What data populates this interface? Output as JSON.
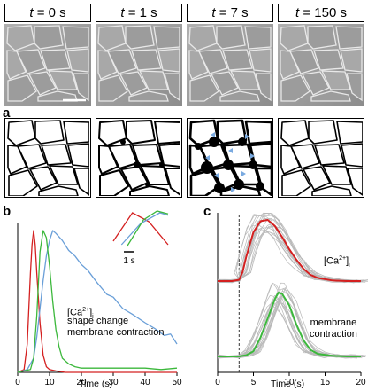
{
  "panel_letters": {
    "a": "a",
    "b": "b",
    "c": "c"
  },
  "time_labels": [
    {
      "t": "t",
      "eq": " = 0 s"
    },
    {
      "t": "t",
      "eq": " = 1 s"
    },
    {
      "t": "t",
      "eq": " = 7 s"
    },
    {
      "t": "t",
      "eq": " = 150 s"
    }
  ],
  "colors": {
    "ca": "#d42020",
    "shape": "#6a9fd8",
    "membrane": "#3cb83c",
    "trace_gray": "#b8b8b8",
    "arrow": "#7aaae0"
  },
  "chart_data": [
    {
      "type": "line",
      "panel": "b",
      "xlabel": "Time (s)",
      "ylabel": "",
      "xlim": [
        0,
        50
      ],
      "xticks": [
        0,
        10,
        20,
        30,
        40,
        50
      ],
      "legend": [
        "[Ca²⁺]ᵢ",
        "shape change",
        "membrane contraction"
      ],
      "legend_main": [
        "[Ca",
        "shape change",
        "membrane contraction"
      ],
      "legend_sup": "2+",
      "legend_sub": "i",
      "series": [
        {
          "name": "[Ca²⁺]ᵢ",
          "color": "#d42020",
          "x": [
            0,
            2,
            3,
            4,
            4.5,
            5,
            5.5,
            6,
            7,
            8,
            9,
            10,
            12,
            15,
            20,
            30,
            40,
            50
          ],
          "y": [
            0,
            0.02,
            0.2,
            0.7,
            0.9,
            1.0,
            0.9,
            0.7,
            0.35,
            0.12,
            0.04,
            0.02,
            0.01,
            0,
            0,
            0,
            0,
            0
          ]
        },
        {
          "name": "shape change",
          "color": "#6a9fd8",
          "x": [
            0,
            3,
            5,
            6,
            7,
            8,
            9,
            10,
            11,
            12,
            14,
            16,
            18,
            20,
            22,
            25,
            28,
            30,
            33,
            36,
            40,
            43,
            46,
            48,
            50
          ],
          "y": [
            0,
            0.02,
            0.1,
            0.25,
            0.45,
            0.65,
            0.82,
            0.93,
            1.0,
            0.98,
            0.93,
            0.86,
            0.82,
            0.76,
            0.72,
            0.63,
            0.55,
            0.53,
            0.45,
            0.41,
            0.35,
            0.31,
            0.26,
            0.27,
            0.2
          ]
        },
        {
          "name": "membrane contraction",
          "color": "#3cb83c",
          "x": [
            0,
            4,
            5,
            6,
            7,
            8,
            9,
            10,
            11,
            12,
            13,
            14,
            16,
            18,
            20,
            25,
            30,
            35,
            40,
            45,
            50
          ],
          "y": [
            0,
            0.02,
            0.1,
            0.4,
            0.85,
            1.0,
            0.95,
            0.75,
            0.5,
            0.3,
            0.18,
            0.1,
            0.06,
            0.04,
            0.03,
            0.03,
            0.03,
            0.03,
            0.03,
            0.02,
            0.03
          ]
        }
      ],
      "inset_scalebar": "1 s"
    },
    {
      "type": "line",
      "panel": "c",
      "xlabel": "Time (s)",
      "ylabel": "",
      "xlim": [
        0,
        20
      ],
      "xticks": [
        0,
        5,
        10,
        15,
        20
      ],
      "dashed_line_x": 3,
      "labels": [
        "[Ca²⁺]ᵢ",
        "membrane contraction"
      ],
      "label_ca_main": "[Ca",
      "label_ca_sup": "2+",
      "label_ca_sub": "i",
      "label_membrane_1": "membrane",
      "label_membrane_2": "contraction",
      "series": [
        {
          "name": "[Ca²⁺]ᵢ mean",
          "color": "#d42020",
          "x": [
            0,
            2,
            3,
            3.5,
            4,
            5,
            6,
            7,
            8,
            9,
            10,
            11,
            12,
            13,
            14,
            16,
            18,
            20
          ],
          "y": [
            0,
            0,
            0.02,
            0.15,
            0.4,
            0.8,
            0.98,
            1.0,
            0.9,
            0.72,
            0.52,
            0.35,
            0.2,
            0.1,
            0.05,
            0.01,
            0,
            0
          ]
        },
        {
          "name": "membrane contraction mean",
          "color": "#3cb83c",
          "x": [
            0,
            3,
            4,
            5,
            6,
            7,
            8,
            8.5,
            9,
            10,
            11,
            12,
            13,
            14,
            16,
            18,
            20
          ],
          "y": [
            0,
            0,
            0.02,
            0.08,
            0.3,
            0.6,
            0.9,
            1.0,
            0.98,
            0.8,
            0.5,
            0.25,
            0.1,
            0.04,
            0.01,
            0,
            0
          ]
        }
      ]
    }
  ]
}
